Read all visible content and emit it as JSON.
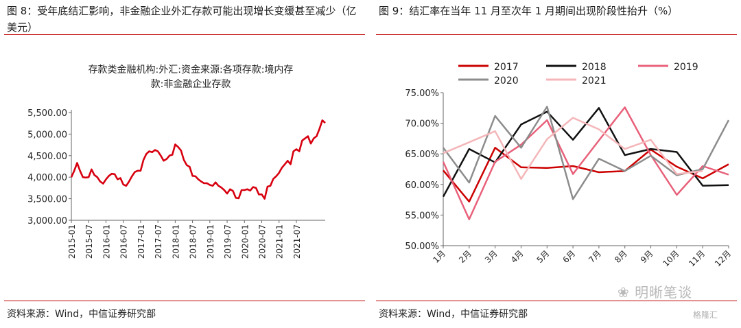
{
  "left": {
    "title": "图 8：受年底结汇影响，非金融企业外汇存款可能出现增长变缓甚至减少（亿美元）",
    "source": "资料来源：Wind，中信证券研究部",
    "chart_data": {
      "type": "line",
      "title_lines": [
        "存款类金融机构:外汇:资金来源:各项存款:境内存",
        "款:非金融企业存款"
      ],
      "yticks": [
        "3,000.00",
        "3,500.00",
        "4,000.00",
        "4,500.00",
        "5,000.00",
        "5,500.00"
      ],
      "ylim": [
        3000,
        5500
      ],
      "xticks": [
        "2015-01",
        "2015-07",
        "2016-01",
        "2016-07",
        "2017-01",
        "2017-07",
        "2018-01",
        "2018-07",
        "2019-01",
        "2019-07",
        "2020-01",
        "2020-07",
        "2021-01",
        "2021-07"
      ],
      "color": "#d7000f",
      "series": [
        {
          "values": [
            4000,
            4150,
            4330,
            4150,
            4000,
            3990,
            4000,
            4180,
            4050,
            4000,
            3900,
            3850,
            3950,
            4030,
            4080,
            4070,
            3950,
            3980,
            3830,
            3800,
            3900,
            4020,
            4120,
            4150,
            4150,
            4400,
            4540,
            4600,
            4580,
            4630,
            4600,
            4500,
            4380,
            4420,
            4500,
            4520,
            4760,
            4700,
            4620,
            4400,
            4280,
            4240,
            4030,
            4020,
            3950,
            3900,
            3860,
            3860,
            3820,
            3800,
            3880,
            3800,
            3760,
            3700,
            3620,
            3720,
            3680,
            3520,
            3510,
            3700,
            3700,
            3720,
            3690,
            3770,
            3750,
            3600,
            3600,
            3500,
            3780,
            3800,
            3960,
            4020,
            4100,
            4220,
            4300,
            4380,
            4300,
            4600,
            4650,
            4600,
            4850,
            4900,
            4950,
            4780,
            4900,
            4950,
            5120,
            5320,
            5260
          ]
        }
      ]
    }
  },
  "right": {
    "title": "图 9：结汇率在当年 11 月至次年 1 月期间出现阶段性抬升（%）",
    "source": "资料来源：Wind，中信证券研究部",
    "chart_data": {
      "type": "line",
      "categories": [
        "1月",
        "2月",
        "3月",
        "4月",
        "5月",
        "6月",
        "7月",
        "8月",
        "9月",
        "10月",
        "11月",
        "12月"
      ],
      "yticks": [
        "50.00%",
        "55.00%",
        "60.00%",
        "65.00%",
        "70.00%",
        "75.00%"
      ],
      "ylim": [
        50,
        75
      ],
      "series": [
        {
          "name": "2017",
          "color": "#cc0000",
          "values": [
            62.3,
            57.2,
            66.0,
            62.8,
            62.7,
            63.0,
            62.0,
            62.2,
            65.7,
            62.9,
            61.0,
            63.3
          ]
        },
        {
          "name": "2018",
          "color": "#111111",
          "values": [
            58.0,
            65.8,
            63.6,
            69.8,
            71.9,
            67.3,
            72.5,
            64.8,
            65.8,
            65.3,
            59.8,
            59.9
          ]
        },
        {
          "name": "2019",
          "color": "#e8607a",
          "values": [
            63.7,
            54.3,
            63.7,
            66.5,
            70.5,
            61.7,
            67.2,
            72.6,
            64.8,
            58.3,
            63.0,
            61.6
          ]
        },
        {
          "name": "2020",
          "color": "#8c8c8c",
          "values": [
            66.0,
            60.3,
            71.2,
            66.0,
            72.7,
            57.6,
            64.2,
            62.2,
            64.7,
            61.5,
            62.5,
            70.5
          ]
        },
        {
          "name": "2021",
          "color": "#f4b6b9",
          "values": [
            65.1,
            66.9,
            68.7,
            60.9,
            67.4,
            70.9,
            69.0,
            65.8,
            67.3,
            61.7,
            62.2,
            null
          ]
        }
      ]
    }
  },
  "watermark": {
    "text": "明晰笔谈",
    "sub": "格隆汇"
  }
}
